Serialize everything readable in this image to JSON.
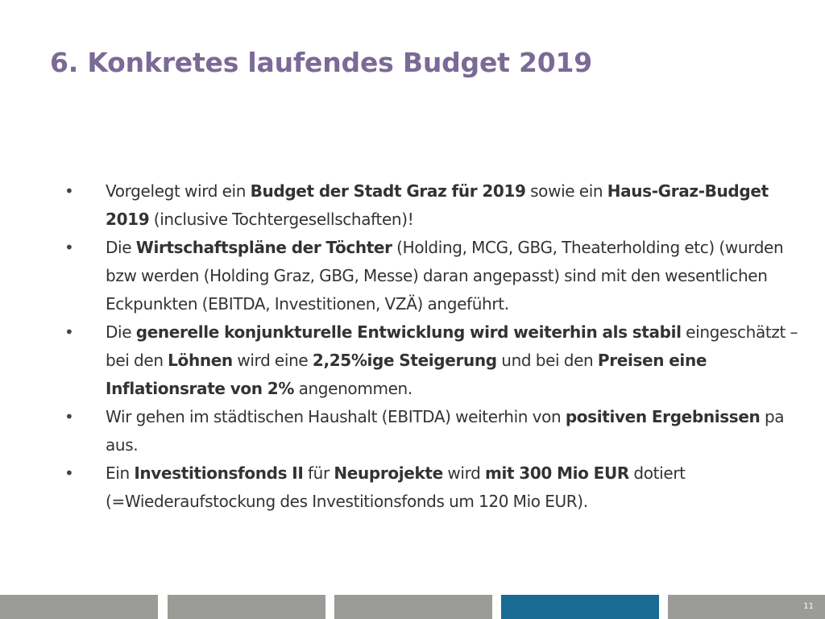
{
  "slide": {
    "title": "6. Konkretes laufendes Budget 2019",
    "page_number": "11"
  },
  "bullet_symbol": "•",
  "bullets": [
    {
      "segments": [
        {
          "text": "Vorgelegt wird ein ",
          "bold": false
        },
        {
          "text": "Budget der Stadt Graz für 2019",
          "bold": true
        },
        {
          "text": " sowie ein ",
          "bold": false
        },
        {
          "text": "Haus-Graz-Budget 2019",
          "bold": true
        },
        {
          "text": " (inclusive Tochtergesellschaften)!",
          "bold": false
        }
      ]
    },
    {
      "segments": [
        {
          "text": "Die ",
          "bold": false
        },
        {
          "text": "Wirtschaftspläne der Töchter",
          "bold": true
        },
        {
          "text": " (Holding, MCG, GBG, Theaterholding etc) (wurden bzw werden (Holding Graz, GBG, Messe) daran angepasst) sind mit den wesentlichen Eckpunkten (EBITDA, Investitionen, VZÄ) angeführt.",
          "bold": false
        }
      ]
    },
    {
      "segments": [
        {
          "text": "Die ",
          "bold": false
        },
        {
          "text": "generelle konjunkturelle Entwicklung wird weiterhin als stabil",
          "bold": true
        },
        {
          "text": " eingeschätzt – bei den ",
          "bold": false
        },
        {
          "text": "Löhnen",
          "bold": true
        },
        {
          "text": " wird eine ",
          "bold": false
        },
        {
          "text": "2,25%ige Steigerung",
          "bold": true
        },
        {
          "text": " und bei den ",
          "bold": false
        },
        {
          "text": "Preisen eine Inflationsrate von 2%",
          "bold": true
        },
        {
          "text": " angenommen.",
          "bold": false
        }
      ]
    },
    {
      "segments": [
        {
          "text": "Wir gehen im städtischen Haushalt (EBITDA) weiterhin von ",
          "bold": false
        },
        {
          "text": "positiven Ergebnissen",
          "bold": true
        },
        {
          "text": " pa aus.",
          "bold": false
        }
      ]
    },
    {
      "segments": [
        {
          "text": "Ein ",
          "bold": false
        },
        {
          "text": "Investitionsfonds II",
          "bold": true
        },
        {
          "text": " für ",
          "bold": false
        },
        {
          "text": "Neuprojekte",
          "bold": true
        },
        {
          "text": " wird ",
          "bold": false
        },
        {
          "text": "mit 300 Mio EUR",
          "bold": true
        },
        {
          "text": " dotiert (=Wiederaufstockung des Investitionsfonds um 120 Mio EUR).",
          "bold": false
        }
      ]
    }
  ],
  "colors": {
    "title": "#7a6a96",
    "body_text": "#333333",
    "footer_gray": "#9b9b97",
    "footer_accent": "#1a6b94"
  }
}
